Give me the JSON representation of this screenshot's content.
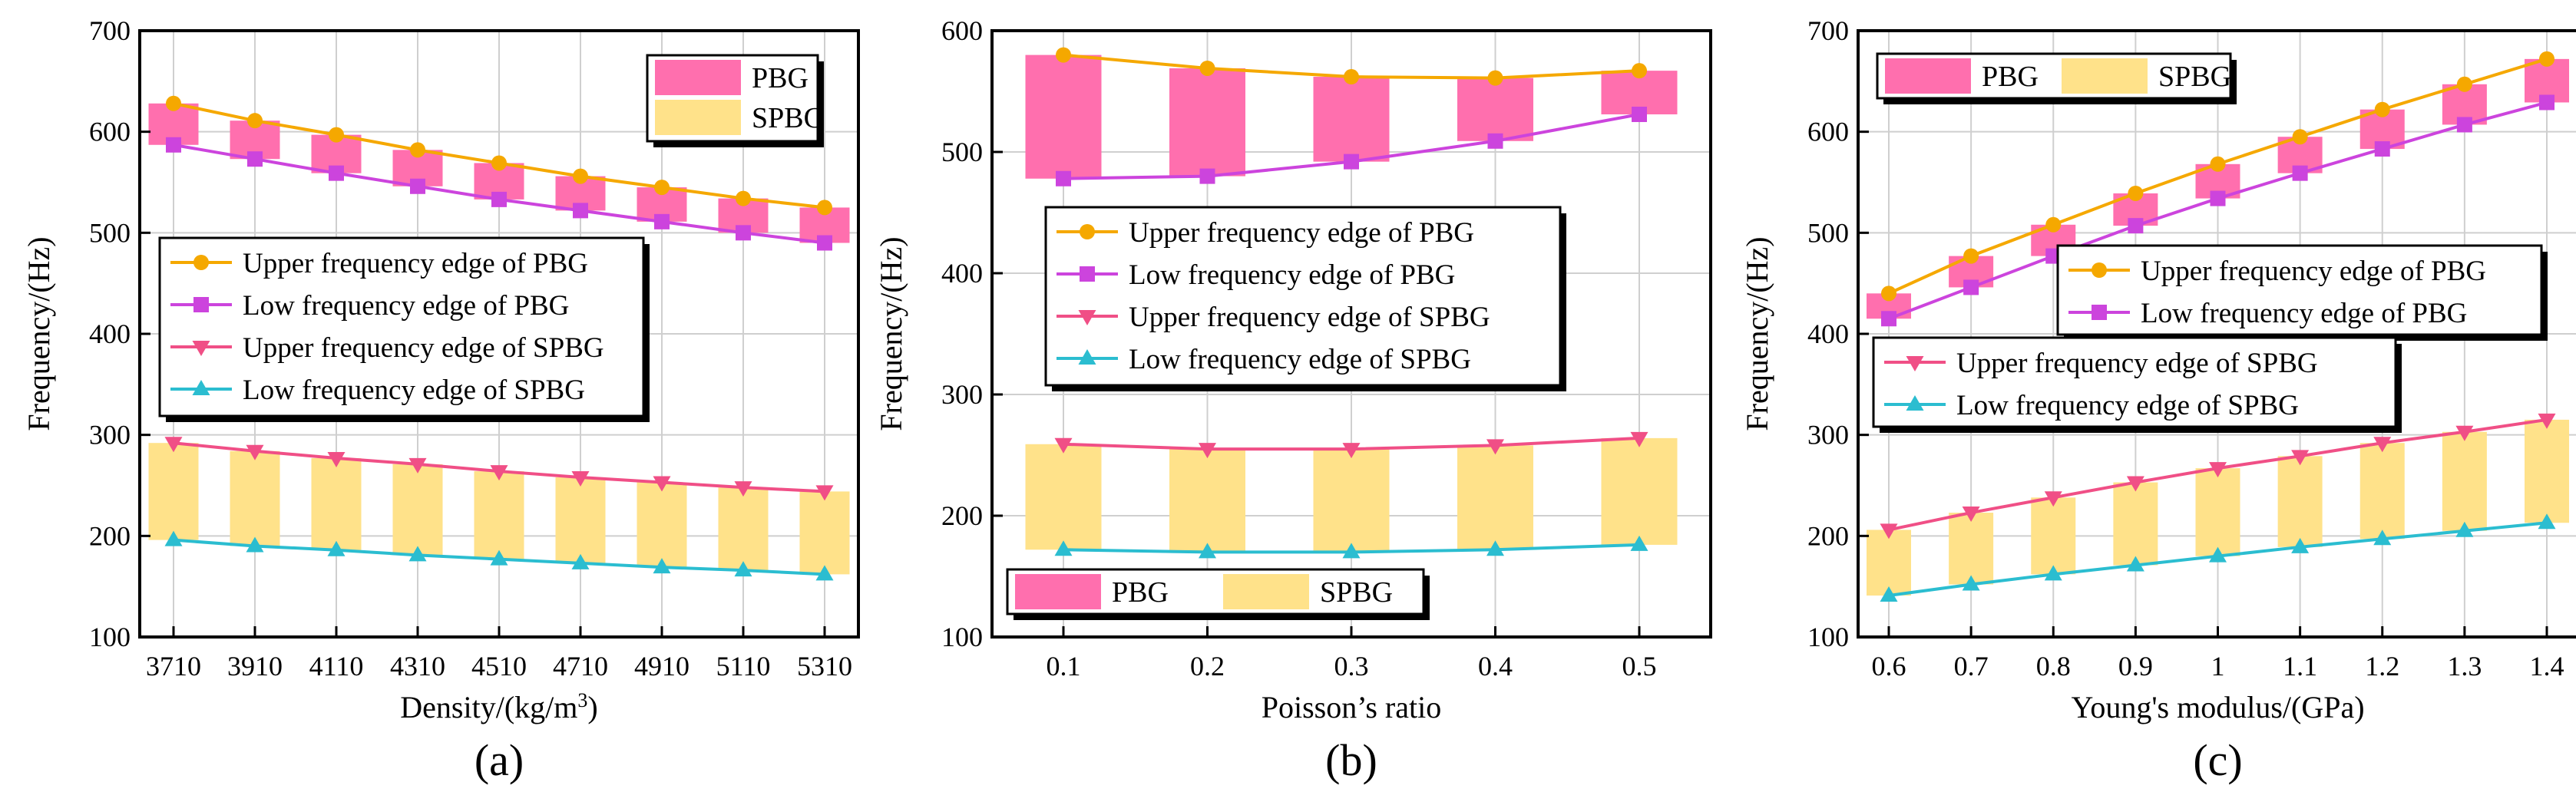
{
  "colors": {
    "pbg_fill": "#FF6FAE",
    "spbg_fill": "#FFE28A",
    "upper_pbg": "#F5A800",
    "low_pbg": "#CC44DD",
    "upper_spbg": "#F04F86",
    "low_spbg": "#2BBDD0"
  },
  "chart_data": [
    {
      "type": "bar",
      "panel_label": "(a)",
      "xlabel_main": "Density/(kg/m",
      "xlabel_sup": "3",
      "xlabel_tail": ")",
      "ylabel": "Frequency/(Hz)",
      "ylim": [
        100,
        700
      ],
      "yticks": [
        100,
        200,
        300,
        400,
        500,
        600,
        700
      ],
      "categories": [
        "3710",
        "3910",
        "4110",
        "4310",
        "4510",
        "4710",
        "4910",
        "5110",
        "5310"
      ],
      "grid": true,
      "band_legend": [
        "PBG",
        "SPBG"
      ],
      "band_legend_position": "top-right",
      "band_legend_layout": "vertical",
      "line_legend_position": "center-left",
      "series": [
        {
          "name": "Upper frequency edge of PBG",
          "marker": "circle",
          "values": [
            628,
            611,
            597,
            582,
            569,
            556,
            545,
            534,
            525
          ]
        },
        {
          "name": "Low frequency edge of PBG",
          "marker": "square",
          "values": [
            587,
            573,
            559,
            546,
            533,
            522,
            511,
            500,
            490
          ]
        },
        {
          "name": "Upper frequency edge of SPBG",
          "marker": "triangle-down",
          "values": [
            292,
            284,
            277,
            271,
            264,
            258,
            253,
            248,
            244
          ]
        },
        {
          "name": "Low frequency edge of SPBG",
          "marker": "triangle-up",
          "values": [
            196,
            190,
            186,
            181,
            177,
            173,
            169,
            166,
            162
          ]
        }
      ]
    },
    {
      "type": "bar",
      "panel_label": "(b)",
      "xlabel": "Poisson’s ratio",
      "ylabel": "Frequency/(Hz)",
      "ylim": [
        100,
        600
      ],
      "yticks": [
        100,
        200,
        300,
        400,
        500,
        600
      ],
      "categories": [
        "0.1",
        "0.2",
        "0.3",
        "0.4",
        "0.5"
      ],
      "grid": true,
      "band_legend": [
        "PBG",
        "SPBG"
      ],
      "band_legend_position": "bottom-left",
      "band_legend_layout": "horizontal",
      "line_legend_position": "center",
      "series": [
        {
          "name": "Upper frequency edge of PBG",
          "marker": "circle",
          "values": [
            580,
            569,
            562,
            561,
            567
          ]
        },
        {
          "name": "Low frequency edge of PBG",
          "marker": "square",
          "values": [
            478,
            480,
            492,
            509,
            531
          ]
        },
        {
          "name": "Upper frequency edge of SPBG",
          "marker": "triangle-down",
          "values": [
            259,
            255,
            255,
            258,
            264
          ]
        },
        {
          "name": "Low frequency edge of SPBG",
          "marker": "triangle-up",
          "values": [
            172,
            170,
            170,
            172,
            176
          ]
        }
      ]
    },
    {
      "type": "bar",
      "panel_label": "(c)",
      "xlabel": "Young's modulus/(GPa)",
      "ylabel": "Frequency/(Hz)",
      "ylim": [
        100,
        700
      ],
      "yticks": [
        100,
        200,
        300,
        400,
        500,
        600,
        700
      ],
      "categories": [
        "0.6",
        "0.7",
        "0.8",
        "0.9",
        "1",
        "1.1",
        "1.2",
        "1.3",
        "1.4"
      ],
      "grid": true,
      "band_legend": [
        "PBG",
        "SPBG"
      ],
      "band_legend_position": "top-left",
      "band_legend_layout": "horizontal",
      "line_legend_position": "center",
      "series": [
        {
          "name": "Upper frequency edge of PBG",
          "marker": "circle",
          "values": [
            440,
            477,
            508,
            539,
            568,
            595,
            622,
            647,
            672
          ]
        },
        {
          "name": "Low frequency edge of PBG",
          "marker": "square",
          "values": [
            415,
            446,
            477,
            507,
            534,
            559,
            583,
            607,
            629
          ]
        },
        {
          "name": "Upper frequency edge of SPBG",
          "marker": "triangle-down",
          "values": [
            206,
            223,
            238,
            253,
            267,
            279,
            292,
            303,
            315
          ]
        },
        {
          "name": "Low frequency edge of SPBG",
          "marker": "triangle-up",
          "values": [
            141,
            152,
            162,
            171,
            180,
            189,
            197,
            205,
            213
          ]
        }
      ]
    }
  ]
}
